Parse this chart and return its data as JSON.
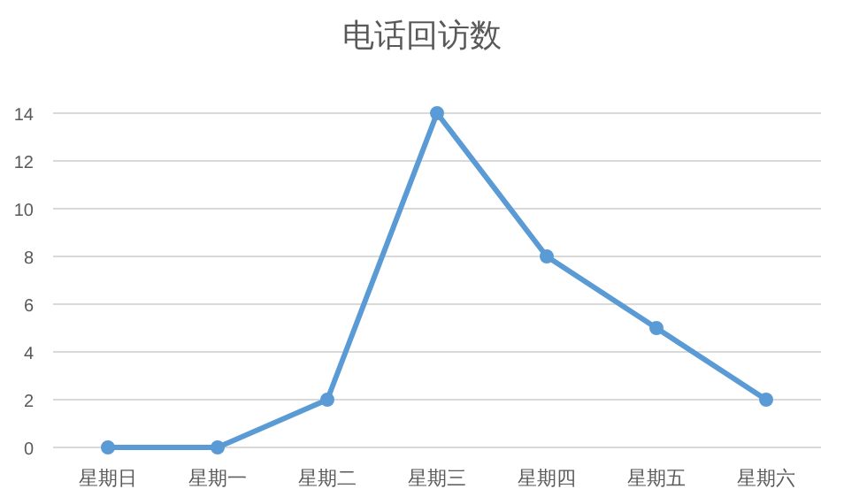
{
  "chart_data": {
    "type": "line",
    "title": "电话回访数",
    "categories": [
      "星期日",
      "星期一",
      "星期二",
      "星期三",
      "星期四",
      "星期五",
      "星期六"
    ],
    "series": [
      {
        "color": "#5b9bd5",
        "values": [
          0,
          0,
          2,
          14,
          8,
          5,
          2
        ]
      }
    ],
    "ylim": [
      0,
      14
    ],
    "yticks": [
      0,
      2,
      4,
      6,
      8,
      10,
      12,
      14
    ],
    "grid": "y",
    "marker": "circle",
    "line_style": "solid"
  }
}
